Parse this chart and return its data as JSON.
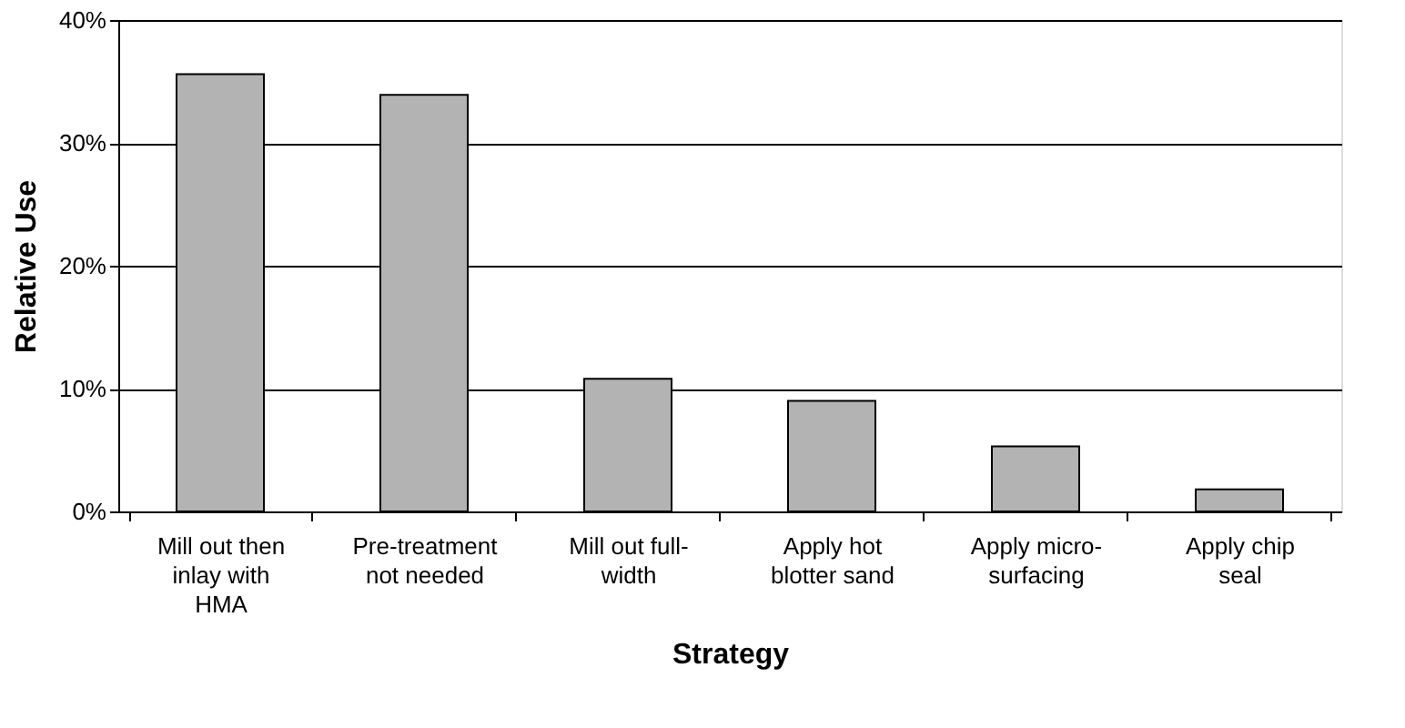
{
  "chart_data": {
    "type": "bar",
    "xlabel": "Strategy",
    "ylabel": "Relative Use",
    "categories": [
      "Mill out then inlay with HMA",
      "Pre-treatment not needed",
      "Mill out full-width",
      "Apply hot blotter sand",
      "Apply micro-surfacing",
      "Apply chip seal"
    ],
    "values": [
      35.6,
      33.9,
      10.8,
      9.0,
      5.3,
      1.8
    ],
    "color": "#b3b3b3",
    "ylim": [
      0,
      40
    ],
    "yticks": [
      {
        "value": 0,
        "label": "0%"
      },
      {
        "value": 10,
        "label": "10%"
      },
      {
        "value": 20,
        "label": "20%"
      },
      {
        "value": 30,
        "label": "30%"
      },
      {
        "value": 40,
        "label": "40%"
      }
    ],
    "grid": "y"
  }
}
